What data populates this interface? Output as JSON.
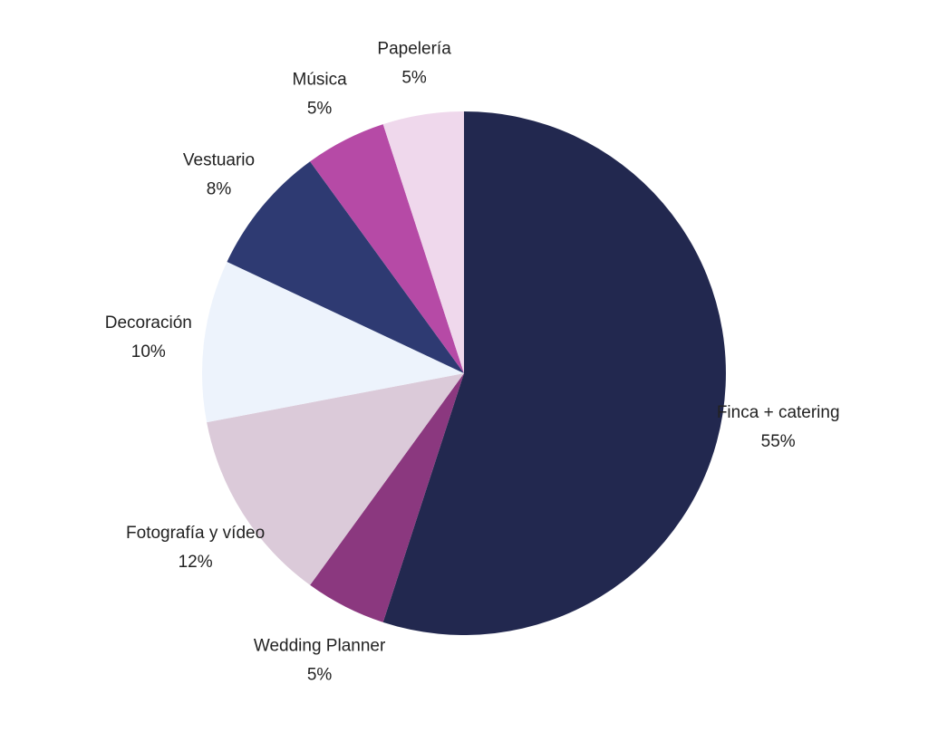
{
  "chart_data": {
    "type": "pie",
    "title": "",
    "start": "top",
    "direction": "clockwise",
    "slices": [
      {
        "label": "Finca + catering",
        "value": 55,
        "value_label": "55%",
        "color": "#22284f"
      },
      {
        "label": "Wedding Planner",
        "value": 5,
        "value_label": "5%",
        "color": "#8b387f"
      },
      {
        "label": "Fotografía y vídeo",
        "value": 12,
        "value_label": "12%",
        "color": "#dbcad9"
      },
      {
        "label": "Decoración",
        "value": 10,
        "value_label": "10%",
        "color": "#edf3fc"
      },
      {
        "label": "Vestuario",
        "value": 8,
        "value_label": "8%",
        "color": "#2e3a72"
      },
      {
        "label": "Música",
        "value": 5,
        "value_label": "5%",
        "color": "#b64aa6"
      },
      {
        "label": "Papelería",
        "value": 5,
        "value_label": "5%",
        "color": "#efd8ec"
      }
    ]
  }
}
